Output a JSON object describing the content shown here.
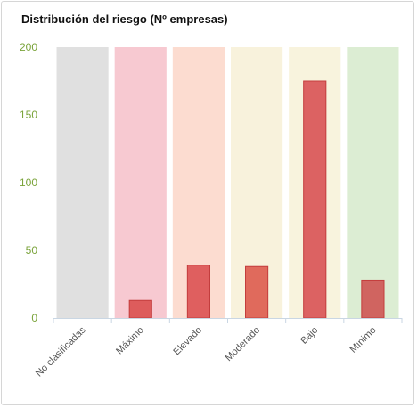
{
  "panel": {
    "title": "Distribución del riesgo (Nº empresas)"
  },
  "chart_data": {
    "type": "bar",
    "categories": [
      "No clasificadas",
      "Máximo",
      "Elevado",
      "Moderado",
      "Bajo",
      "Mínimo"
    ],
    "values": [
      0,
      13,
      39,
      38,
      175,
      28
    ],
    "ylim": [
      0,
      200
    ],
    "yticks": [
      0,
      50,
      100,
      150,
      200
    ],
    "grid": false,
    "band_colors": [
      "#e0e0e0",
      "#f7c9d1",
      "#fcdcd0",
      "#f8f2dc",
      "#f8f3dd",
      "#dcedd3"
    ],
    "bar_colors": [
      "#d95b5b",
      "#dd5c5c",
      "#df5f5f",
      "#e06a5c",
      "#dc6262",
      "#d06460"
    ],
    "bar_stroke": "#c33d3d",
    "tick_color": "#7aa33a"
  }
}
